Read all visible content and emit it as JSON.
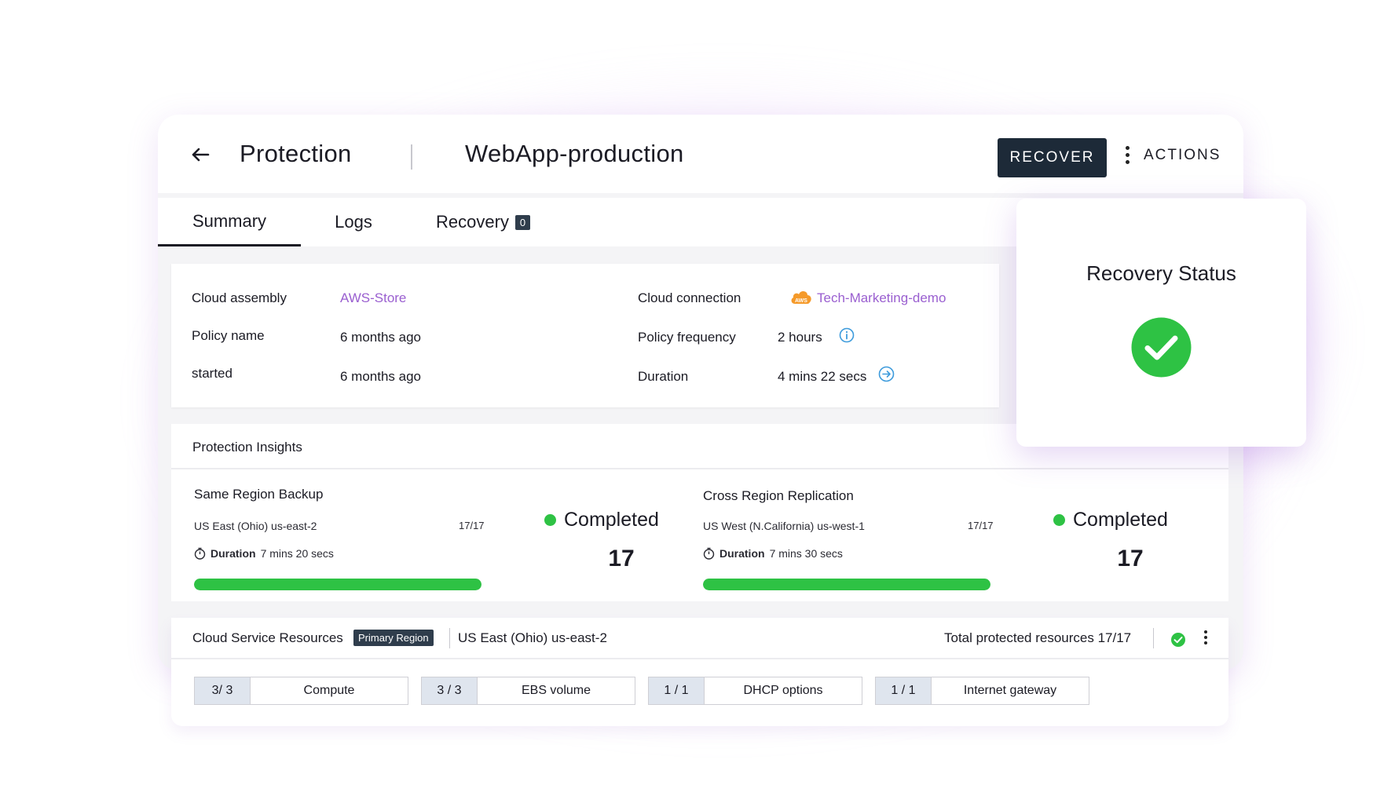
{
  "header": {
    "section_title": "Protection",
    "resource_name": "WebApp-production",
    "recover_label": "RECOVER",
    "actions_label": "ACTIONS"
  },
  "tabs": [
    {
      "label": "Summary",
      "active": true
    },
    {
      "label": "Logs",
      "active": false
    },
    {
      "label": "Recovery",
      "badge": "0",
      "active": false
    }
  ],
  "summary": {
    "cloud_assembly_label": "Cloud assembly",
    "cloud_assembly_value": "AWS-Store",
    "policy_name_label": "Policy name",
    "policy_name_value": "6 months ago",
    "started_label": "started",
    "started_value": "6 months ago",
    "cloud_connection_label": "Cloud connection",
    "cloud_connection_value": "Tech-Marketing-demo",
    "cloud_connection_icon_text": "AWS",
    "policy_frequency_label": "Policy frequency",
    "policy_frequency_value": "2 hours",
    "duration_label": "Duration",
    "duration_value": "4 mins 22 secs"
  },
  "insights": {
    "title": "Protection Insights",
    "same_region": {
      "title": "Same Region Backup",
      "region": "US East (Ohio) us-east-2",
      "ratio": "17/17",
      "duration_label": "Duration",
      "duration_value": "7 mins 20 secs",
      "progress": 1.0,
      "status": "Completed",
      "count": "17"
    },
    "cross_region": {
      "title": "Cross Region Replication",
      "region": "US West (N.California) us-west-1",
      "ratio": "17/17",
      "duration_label": "Duration",
      "duration_value": "7 mins 30 secs",
      "progress": 1.0,
      "status": "Completed",
      "count": "17"
    }
  },
  "resources": {
    "title": "Cloud Service Resources",
    "region_tag": "Primary Region",
    "region": "US East (Ohio) us-east-2",
    "total": "Total protected resources 17/17",
    "chips": [
      {
        "count": "3/ 3",
        "name": "Compute"
      },
      {
        "count": "3 / 3",
        "name": "EBS volume"
      },
      {
        "count": "1 / 1",
        "name": "DHCP options"
      },
      {
        "count": "1 / 1",
        "name": "Internet gateway"
      }
    ]
  },
  "recovery_status": {
    "title": "Recovery Status"
  },
  "colors": {
    "accent_purple": "#9a5fd0",
    "dark_navy": "#1d2a38",
    "success_green": "#2ec244",
    "aws_orange": "#f59a2a",
    "info_blue": "#3d9bdc"
  }
}
